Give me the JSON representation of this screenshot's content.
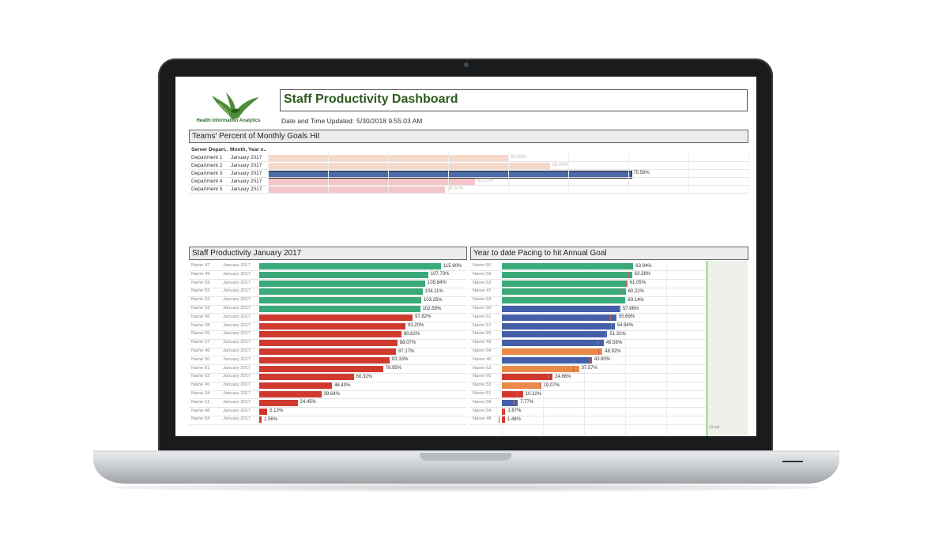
{
  "colors": {
    "green": "#3aaa7a",
    "red": "#d03a2e",
    "blue": "#4560a8",
    "orange": "#ea8a48",
    "dept_peach": "#f5d8c8",
    "dept_pink": "#f3c4c8",
    "dept_blue": "#4a6aa8"
  },
  "header": {
    "logo_text": "Health Information Analytics",
    "title": "Staff Productivity Dashboard",
    "updated_label": "Date and Time Updated:",
    "updated_value": "5/30/2018 9:55:03 AM"
  },
  "teams": {
    "title": "Teams' Percent of Monthly Goals Hit",
    "col1": "Server Depart..",
    "col2": "Month, Year o..",
    "rows": [
      {
        "dept": "Department 1",
        "month": "January 2017",
        "value": 50.03,
        "label": "50.03%",
        "color": "#f5d8c8"
      },
      {
        "dept": "Department 2",
        "month": "January 2017",
        "value": 58.69,
        "label": "58.69%",
        "color": "#f5d8c8"
      },
      {
        "dept": "Department 3",
        "month": "January 2017",
        "value": 75.56,
        "label": "75.56%",
        "color": "#4a6aa8"
      },
      {
        "dept": "Department 4",
        "month": "January 2017",
        "value": 43.1,
        "label": "43.10%",
        "color": "#f3c4c8"
      },
      {
        "dept": "Department 5",
        "month": "January 2017",
        "value": 36.87,
        "label": "36.87%",
        "color": "#f3c4c8"
      }
    ]
  },
  "staff": {
    "title": "Staff Productivity January 2017",
    "rows": [
      {
        "name": "Name 47",
        "month": "January 2017",
        "value": 115.9,
        "label": "115.90%",
        "c": "green"
      },
      {
        "name": "Name 49",
        "month": "January 2017",
        "value": 107.73,
        "label": "107.73%",
        "c": "green"
      },
      {
        "name": "Name 59",
        "month": "January 2017",
        "value": 105.84,
        "label": "105.84%",
        "c": "green"
      },
      {
        "name": "Name 52",
        "month": "January 2017",
        "value": 104.11,
        "label": "104.11%",
        "c": "green"
      },
      {
        "name": "Name 63",
        "month": "January 2017",
        "value": 103.25,
        "label": "103.25%",
        "c": "green"
      },
      {
        "name": "Name 53",
        "month": "January 2017",
        "value": 102.59,
        "label": "102.59%",
        "c": "green"
      },
      {
        "name": "Name 56",
        "month": "January 2017",
        "value": 97.82,
        "label": "97.82%",
        "c": "red"
      },
      {
        "name": "Name 58",
        "month": "January 2017",
        "value": 93.2,
        "label": "93.20%",
        "c": "red"
      },
      {
        "name": "Name 55",
        "month": "January 2017",
        "value": 90.62,
        "label": "90.62%",
        "c": "red"
      },
      {
        "name": "Name 57",
        "month": "January 2017",
        "value": 88.07,
        "label": "88.07%",
        "c": "red"
      },
      {
        "name": "Name 46",
        "month": "January 2017",
        "value": 87.17,
        "label": "87.17%",
        "c": "red"
      },
      {
        "name": "Name 50",
        "month": "January 2017",
        "value": 83.15,
        "label": "83.15%",
        "c": "red"
      },
      {
        "name": "Name 61",
        "month": "January 2017",
        "value": 78.95,
        "label": "78.95%",
        "c": "red"
      },
      {
        "name": "Name 62",
        "month": "January 2017",
        "value": 60.32,
        "label": "60.32%",
        "c": "red"
      },
      {
        "name": "Name 60",
        "month": "January 2017",
        "value": 46.4,
        "label": "46.40%",
        "c": "red"
      },
      {
        "name": "Name 64",
        "month": "January 2017",
        "value": 39.64,
        "label": "39.64%",
        "c": "red"
      },
      {
        "name": "Name 51",
        "month": "January 2017",
        "value": 24.45,
        "label": "24.45%",
        "c": "red"
      },
      {
        "name": "Name 48",
        "month": "January 2017",
        "value": 5.13,
        "label": "5.13%",
        "c": "red"
      },
      {
        "name": "Name 54",
        "month": "January 2017",
        "value": 1.56,
        "label": "1.56%",
        "c": "red"
      }
    ]
  },
  "pacing": {
    "title": "Year to date Pacing to hit Annual Goal",
    "goal_label": "Goal",
    "rows": [
      {
        "name": "Name 56",
        "value": 63.94,
        "label": "63.94%",
        "c": "green"
      },
      {
        "name": "Name 59",
        "value": 63.38,
        "label": "63.38%",
        "c": "green"
      },
      {
        "name": "Name 52",
        "value": 61.05,
        "label": "61.05%",
        "c": "green"
      },
      {
        "name": "Name 47",
        "value": 60.22,
        "label": "60.22%",
        "c": "green"
      },
      {
        "name": "Name 63",
        "value": 60.14,
        "label": "60.14%",
        "c": "green"
      },
      {
        "name": "Name 50",
        "value": 57.66,
        "label": "57.66%",
        "c": "blue"
      },
      {
        "name": "Name 61",
        "value": 55.69,
        "label": "55.69%",
        "c": "blue"
      },
      {
        "name": "Name 57",
        "value": 54.94,
        "label": "54.94%",
        "c": "blue"
      },
      {
        "name": "Name 55",
        "value": 51.31,
        "label": "51.31%",
        "c": "blue"
      },
      {
        "name": "Name 49",
        "value": 49.56,
        "label": "49.56%",
        "c": "blue"
      },
      {
        "name": "Name 64",
        "value": 48.92,
        "label": "48.92%",
        "c": "orange"
      },
      {
        "name": "Name 46",
        "value": 43.8,
        "label": "43.80%",
        "c": "blue"
      },
      {
        "name": "Name 62",
        "value": 37.57,
        "label": "37.57%",
        "c": "orange"
      },
      {
        "name": "Name 60",
        "value": 24.66,
        "label": "24.66%",
        "c": "red"
      },
      {
        "name": "Name 53",
        "value": 19.07,
        "label": "19.07%",
        "c": "orange"
      },
      {
        "name": "Name 51",
        "value": 10.32,
        "label": "10.32%",
        "c": "red"
      },
      {
        "name": "Name 58",
        "value": 7.77,
        "label": "7.77%",
        "c": "blue"
      },
      {
        "name": "Name 54",
        "value": 1.67,
        "label": "1.67%",
        "c": "red"
      },
      {
        "name": "Name 48",
        "value": 1.48,
        "label": "1.48%",
        "c": "red"
      }
    ]
  }
}
